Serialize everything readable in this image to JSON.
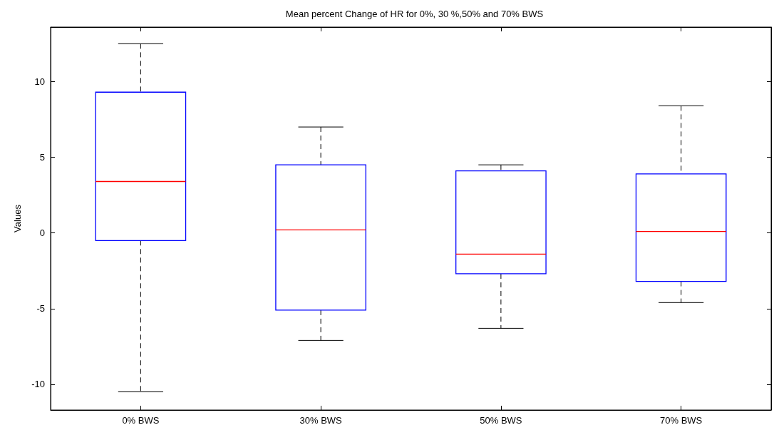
{
  "chart_data": {
    "type": "box",
    "title": "Mean percent Change of HR for 0%, 30 %,50% and 70% BWS",
    "ylabel": "Values",
    "categories": [
      "0% BWS",
      "30% BWS",
      "50% BWS",
      "70% BWS"
    ],
    "series": [
      {
        "color": "#0000ff",
        "boxes": [
          {
            "low": -10.5,
            "q1": -0.5,
            "median": 3.4,
            "q3": 9.3,
            "high": 12.5
          },
          {
            "low": -7.1,
            "q1": -5.1,
            "median": 0.2,
            "q3": 4.5,
            "high": 7.0
          },
          {
            "low": -6.3,
            "q1": -2.7,
            "median": -1.4,
            "q3": 4.1,
            "high": 4.5
          },
          {
            "low": -4.6,
            "q1": -3.2,
            "median": 0.1,
            "q3": 3.9,
            "high": 8.4
          }
        ]
      }
    ],
    "ylim": [
      -11.7,
      13.6
    ],
    "yticks": [
      -10,
      -5,
      0,
      5,
      10
    ],
    "grid": false
  }
}
